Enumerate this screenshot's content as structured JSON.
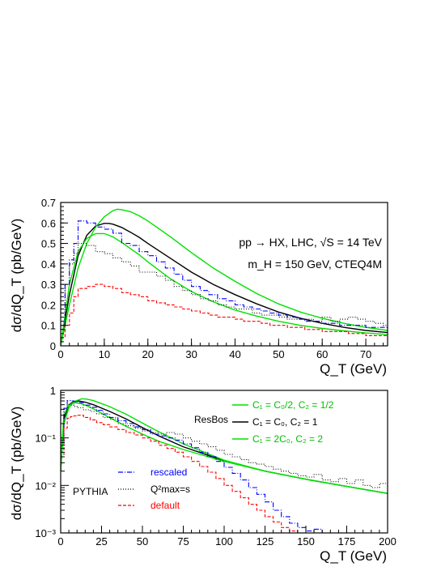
{
  "chart_data": [
    {
      "type": "line",
      "panel": "top",
      "xlabel": "Q_T (GeV)",
      "ylabel": "dσ/dQ_T (pb/GeV)",
      "xlim": [
        0,
        75
      ],
      "ylim": [
        0,
        0.7
      ],
      "xscale": "linear",
      "yscale": "linear",
      "xticks": [
        0,
        10,
        20,
        30,
        40,
        50,
        60,
        70
      ],
      "xtick_labels": [
        "0",
        "10",
        "20",
        "30",
        "40",
        "50",
        "60",
        "70"
      ],
      "yticks": [
        0,
        0.1,
        0.2,
        0.3,
        0.4,
        0.5,
        0.6,
        0.7
      ],
      "ytick_labels": [
        "0",
        "0.1",
        "0.2",
        "0.3",
        "0.4",
        "0.5",
        "0.6",
        "0.7"
      ],
      "annotations": [
        "pp → HX, LHC, √S = 14 TeV",
        "m_H = 150 GeV, CTEQ4M"
      ],
      "grid": false,
      "series": [
        {
          "style": "solid",
          "color": "#000000",
          "kind": "curve",
          "x": [
            0,
            2,
            4,
            6,
            8,
            10,
            11,
            12,
            14,
            16,
            18,
            20,
            25,
            30,
            35,
            40,
            45,
            50,
            55,
            60,
            65,
            70,
            75
          ],
          "y": [
            0,
            0.25,
            0.44,
            0.54,
            0.585,
            0.598,
            0.598,
            0.594,
            0.578,
            0.555,
            0.53,
            0.5,
            0.43,
            0.36,
            0.3,
            0.25,
            0.205,
            0.165,
            0.135,
            0.11,
            0.09,
            0.075,
            0.065
          ]
        },
        {
          "style": "solid",
          "color": "#00e000",
          "kind": "curve",
          "x": [
            0,
            2,
            4,
            6,
            8,
            10,
            12,
            13,
            14,
            16,
            18,
            20,
            25,
            30,
            35,
            40,
            45,
            50,
            55,
            60,
            65,
            70,
            75
          ],
          "y": [
            0,
            0.2,
            0.38,
            0.5,
            0.58,
            0.63,
            0.66,
            0.667,
            0.665,
            0.655,
            0.635,
            0.61,
            0.535,
            0.455,
            0.38,
            0.315,
            0.255,
            0.205,
            0.165,
            0.135,
            0.11,
            0.09,
            0.075
          ]
        },
        {
          "style": "solid",
          "color": "#00e000",
          "kind": "curve",
          "x": [
            0,
            2,
            4,
            6,
            8,
            10,
            12,
            14,
            16,
            18,
            20,
            25,
            30,
            35,
            40,
            45,
            50,
            55,
            60,
            65,
            70,
            75
          ],
          "y": [
            0,
            0.3,
            0.46,
            0.525,
            0.548,
            0.548,
            0.532,
            0.505,
            0.475,
            0.445,
            0.41,
            0.33,
            0.265,
            0.215,
            0.175,
            0.145,
            0.12,
            0.1,
            0.085,
            0.073,
            0.063,
            0.055
          ]
        },
        {
          "style": "dashdot",
          "color": "#0000ff",
          "kind": "histogram",
          "name": "rescaled",
          "x": [
            0,
            1,
            2,
            3,
            4,
            6,
            8,
            10,
            12,
            14,
            16,
            18,
            20,
            22,
            24,
            26,
            28,
            30,
            32,
            34,
            36,
            38,
            40,
            42,
            44,
            46,
            48,
            50,
            52,
            54,
            56,
            58,
            60,
            62,
            64,
            66,
            68,
            70,
            72,
            74,
            75
          ],
          "y": [
            0.08,
            0.3,
            0.42,
            0.5,
            0.61,
            0.6,
            0.58,
            0.57,
            0.55,
            0.5,
            0.49,
            0.46,
            0.44,
            0.41,
            0.38,
            0.35,
            0.32,
            0.29,
            0.27,
            0.25,
            0.23,
            0.22,
            0.2,
            0.19,
            0.18,
            0.17,
            0.16,
            0.15,
            0.14,
            0.13,
            0.12,
            0.12,
            0.11,
            0.11,
            0.1,
            0.1,
            0.1,
            0.09,
            0.09,
            0.09,
            0.09
          ]
        },
        {
          "style": "dotted",
          "color": "#000000",
          "kind": "histogram",
          "name": "Q²max=s",
          "x": [
            0,
            1,
            2,
            3,
            4,
            6,
            8,
            10,
            12,
            14,
            16,
            18,
            20,
            22,
            24,
            26,
            28,
            30,
            32,
            34,
            36,
            38,
            40,
            42,
            44,
            46,
            48,
            50,
            52,
            54,
            56,
            58,
            60,
            62,
            64,
            66,
            68,
            70,
            72,
            74,
            75
          ],
          "y": [
            0.1,
            0.3,
            0.4,
            0.45,
            0.5,
            0.49,
            0.46,
            0.45,
            0.43,
            0.41,
            0.39,
            0.36,
            0.36,
            0.34,
            0.32,
            0.29,
            0.27,
            0.25,
            0.23,
            0.22,
            0.2,
            0.19,
            0.18,
            0.18,
            0.16,
            0.15,
            0.15,
            0.14,
            0.13,
            0.13,
            0.13,
            0.12,
            0.14,
            0.12,
            0.13,
            0.14,
            0.13,
            0.12,
            0.11,
            0.1,
            0.1
          ]
        },
        {
          "style": "dashed",
          "color": "#ff0000",
          "kind": "histogram",
          "name": "default",
          "x": [
            0,
            1,
            2,
            3,
            4,
            6,
            8,
            10,
            12,
            14,
            16,
            18,
            20,
            22,
            24,
            26,
            28,
            30,
            32,
            34,
            36,
            38,
            40,
            42,
            44,
            46,
            48,
            50,
            52,
            54,
            56,
            58,
            60,
            62,
            64,
            66,
            68,
            70,
            72,
            74,
            75
          ],
          "y": [
            0.04,
            0.1,
            0.16,
            0.24,
            0.28,
            0.29,
            0.3,
            0.29,
            0.28,
            0.26,
            0.25,
            0.24,
            0.22,
            0.21,
            0.2,
            0.19,
            0.18,
            0.17,
            0.16,
            0.15,
            0.14,
            0.14,
            0.13,
            0.12,
            0.12,
            0.11,
            0.1,
            0.1,
            0.09,
            0.09,
            0.08,
            0.08,
            0.07,
            0.07,
            0.07,
            0.06,
            0.06,
            0.05,
            0.05,
            0.05,
            0.05
          ]
        }
      ]
    },
    {
      "type": "line",
      "panel": "bottom",
      "xlabel": "Q_T (GeV)",
      "ylabel": "dσ/dQ_T (pb/GeV)",
      "xlim": [
        0,
        200
      ],
      "ylim": [
        0.001,
        1
      ],
      "xscale": "linear",
      "yscale": "log",
      "xticks": [
        0,
        25,
        50,
        75,
        100,
        125,
        150,
        175,
        200
      ],
      "xtick_labels": [
        "0",
        "25",
        "50",
        "75",
        "100",
        "125",
        "150",
        "175",
        "200"
      ],
      "yticks": [
        0.001,
        0.01,
        0.1,
        1
      ],
      "ytick_labels": [
        "10⁻³",
        "10⁻²",
        "10⁻¹",
        "1"
      ],
      "grid": false,
      "legend_resbos": {
        "title": "ResBos",
        "entries": [
          {
            "label": "C₁ = C₀/2, C₂ = 1/2",
            "color": "#00e000",
            "style": "solid"
          },
          {
            "label": "C₁ = C₀,     C₂ = 1",
            "color": "#000000",
            "style": "solid"
          },
          {
            "label": "C₁ = 2C₀,    C₂ = 2",
            "color": "#00e000",
            "style": "solid"
          }
        ]
      },
      "legend_pythia": {
        "title": "PYTHIA",
        "entries": [
          {
            "label": "rescaled",
            "color": "#0000ff",
            "style": "dashdot"
          },
          {
            "label": "Q²max=s",
            "color": "#000000",
            "style": "dotted"
          },
          {
            "label": "default",
            "color": "#ff0000",
            "style": "dashed"
          }
        ]
      },
      "series": [
        {
          "style": "solid",
          "color": "#000000",
          "kind": "curve",
          "x": [
            0,
            2,
            5,
            8,
            11,
            15,
            20,
            30,
            40,
            50,
            60,
            75,
            100,
            125,
            150,
            175,
            200
          ],
          "y": [
            0.02,
            0.25,
            0.5,
            0.585,
            0.598,
            0.565,
            0.5,
            0.36,
            0.25,
            0.165,
            0.11,
            0.065,
            0.033,
            0.02,
            0.0135,
            0.0095,
            0.0068
          ]
        },
        {
          "style": "solid",
          "color": "#00e000",
          "kind": "curve",
          "x": [
            0,
            2,
            5,
            8,
            13,
            16,
            20,
            30,
            40,
            50,
            60,
            75,
            100,
            125,
            150,
            175,
            200
          ],
          "y": [
            0.02,
            0.2,
            0.43,
            0.58,
            0.667,
            0.655,
            0.61,
            0.455,
            0.315,
            0.205,
            0.135,
            0.075,
            0.034,
            0.02,
            0.0135,
            0.0095,
            0.0068
          ]
        },
        {
          "style": "solid",
          "color": "#00e000",
          "kind": "curve",
          "x": [
            0,
            2,
            5,
            9,
            12,
            16,
            20,
            30,
            40,
            50,
            60,
            75,
            100,
            125,
            150,
            175,
            200
          ],
          "y": [
            0.03,
            0.3,
            0.5,
            0.55,
            0.532,
            0.475,
            0.41,
            0.265,
            0.175,
            0.12,
            0.085,
            0.057,
            0.032,
            0.02,
            0.0135,
            0.0095,
            0.0068
          ]
        },
        {
          "style": "dashdot",
          "color": "#0000ff",
          "kind": "histogram",
          "name": "rescaled",
          "x": [
            0,
            2,
            4,
            6,
            8,
            10,
            14,
            18,
            22,
            26,
            30,
            35,
            40,
            45,
            50,
            55,
            60,
            65,
            70,
            75,
            80,
            85,
            90,
            95,
            100,
            105,
            110,
            115,
            120,
            125,
            130,
            135,
            140,
            145,
            150,
            155,
            160
          ],
          "y": [
            0.08,
            0.42,
            0.61,
            0.6,
            0.58,
            0.55,
            0.49,
            0.44,
            0.38,
            0.32,
            0.27,
            0.23,
            0.2,
            0.17,
            0.15,
            0.12,
            0.11,
            0.1,
            0.09,
            0.075,
            0.062,
            0.05,
            0.04,
            0.032,
            0.024,
            0.018,
            0.013,
            0.009,
            0.0065,
            0.0045,
            0.003,
            0.0022,
            0.0016,
            0.0013,
            0.0011,
            0.0012,
            0.001
          ]
        },
        {
          "style": "dotted",
          "color": "#000000",
          "kind": "histogram",
          "name": "Q²max=s",
          "x": [
            0,
            2,
            4,
            6,
            8,
            10,
            14,
            18,
            22,
            26,
            30,
            35,
            40,
            45,
            50,
            55,
            60,
            65,
            70,
            75,
            80,
            85,
            90,
            95,
            100,
            105,
            110,
            115,
            120,
            125,
            130,
            135,
            140,
            145,
            150,
            155,
            160,
            165,
            170,
            175,
            180,
            185,
            190,
            195,
            200
          ],
          "y": [
            0.1,
            0.4,
            0.5,
            0.49,
            0.46,
            0.43,
            0.39,
            0.36,
            0.32,
            0.27,
            0.25,
            0.2,
            0.18,
            0.16,
            0.14,
            0.13,
            0.12,
            0.13,
            0.12,
            0.1,
            0.085,
            0.075,
            0.065,
            0.055,
            0.045,
            0.04,
            0.035,
            0.03,
            0.028,
            0.025,
            0.022,
            0.02,
            0.018,
            0.016,
            0.015,
            0.017,
            0.013,
            0.012,
            0.014,
            0.011,
            0.013,
            0.01,
            0.009,
            0.011,
            0.008
          ]
        },
        {
          "style": "dashed",
          "color": "#ff0000",
          "kind": "histogram",
          "name": "default",
          "x": [
            0,
            2,
            4,
            6,
            8,
            10,
            14,
            18,
            22,
            26,
            30,
            35,
            40,
            45,
            50,
            55,
            60,
            65,
            70,
            75,
            80,
            85,
            90,
            95,
            100,
            105,
            110,
            115,
            120,
            125,
            130,
            135,
            140,
            145,
            150,
            152
          ],
          "y": [
            0.04,
            0.16,
            0.26,
            0.28,
            0.29,
            0.3,
            0.27,
            0.24,
            0.21,
            0.19,
            0.17,
            0.15,
            0.13,
            0.115,
            0.1,
            0.085,
            0.07,
            0.06,
            0.05,
            0.04,
            0.032,
            0.025,
            0.019,
            0.014,
            0.01,
            0.0075,
            0.0055,
            0.004,
            0.003,
            0.0022,
            0.0017,
            0.0013,
            0.0011,
            0.001,
            0.001,
            0.001
          ]
        }
      ]
    }
  ]
}
